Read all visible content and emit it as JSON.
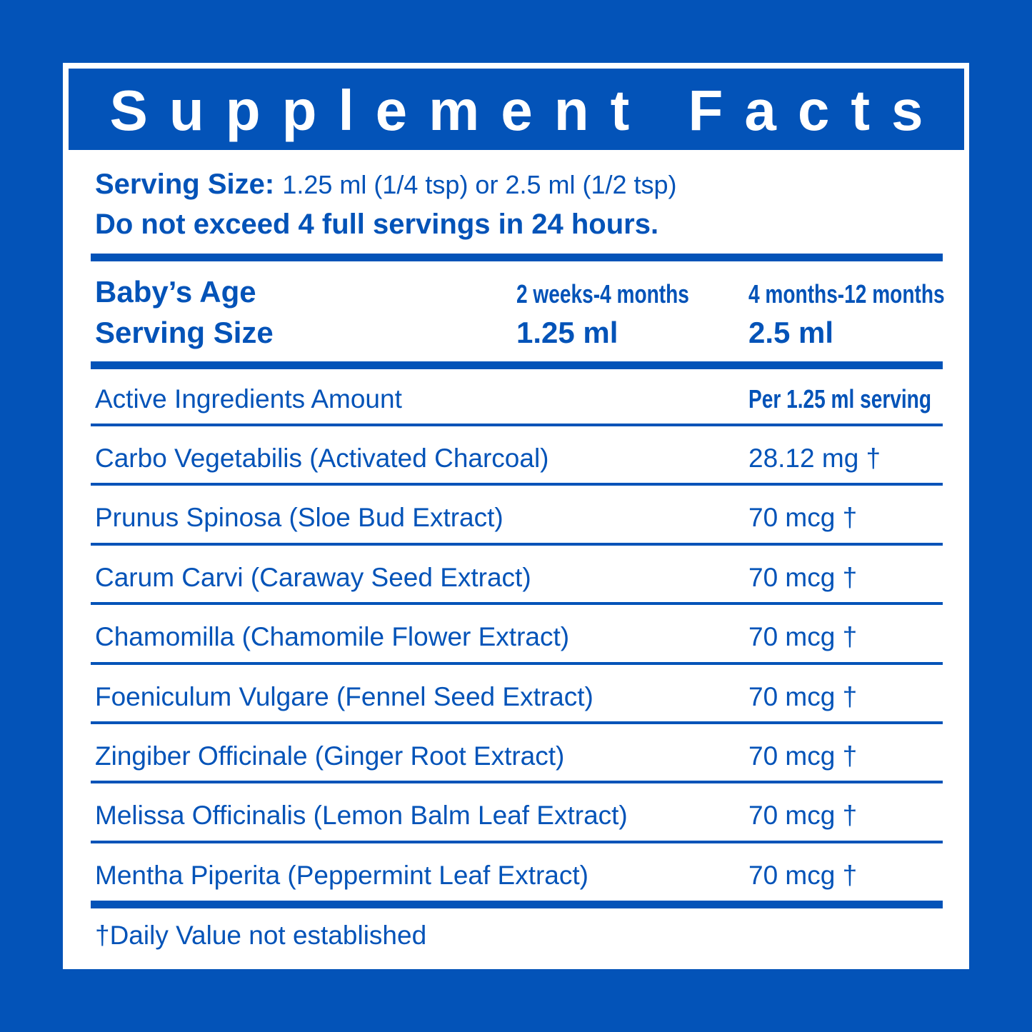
{
  "header": {
    "title": "Supplement Facts"
  },
  "serving": {
    "label": "Serving Size:",
    "text": "1.25 ml (1/4 tsp) or 2.5 ml (1/2 tsp)",
    "warning": "Do not exceed 4 full servings in 24 hours."
  },
  "age_table": {
    "rows": [
      [
        "Baby’s Age",
        "2 weeks-4 months",
        "4 months-12 months"
      ],
      [
        "Serving Size",
        "1.25 ml",
        "2.5 ml"
      ]
    ]
  },
  "ingredients": {
    "header": [
      "Active Ingredients Amount",
      "Per 1.25 ml serving"
    ],
    "rows": [
      [
        "Carbo Vegetabilis (Activated Charcoal)",
        "28.12 mg †"
      ],
      [
        "Prunus Spinosa (Sloe Bud Extract)",
        "70 mcg †"
      ],
      [
        "Carum Carvi (Caraway Seed Extract)",
        "70 mcg †"
      ],
      [
        "Chamomilla (Chamomile Flower Extract)",
        "70 mcg †"
      ],
      [
        "Foeniculum Vulgare (Fennel Seed Extract)",
        "70 mcg †"
      ],
      [
        "Zingiber Officinale (Ginger Root Extract)",
        "70 mcg †"
      ],
      [
        "Melissa Officinalis (Lemon Balm Leaf Extract)",
        "70 mcg †"
      ],
      [
        "Mentha Piperita (Peppermint Leaf Extract)",
        "70 mcg †"
      ]
    ]
  },
  "footnote": "†Daily Value not established"
}
